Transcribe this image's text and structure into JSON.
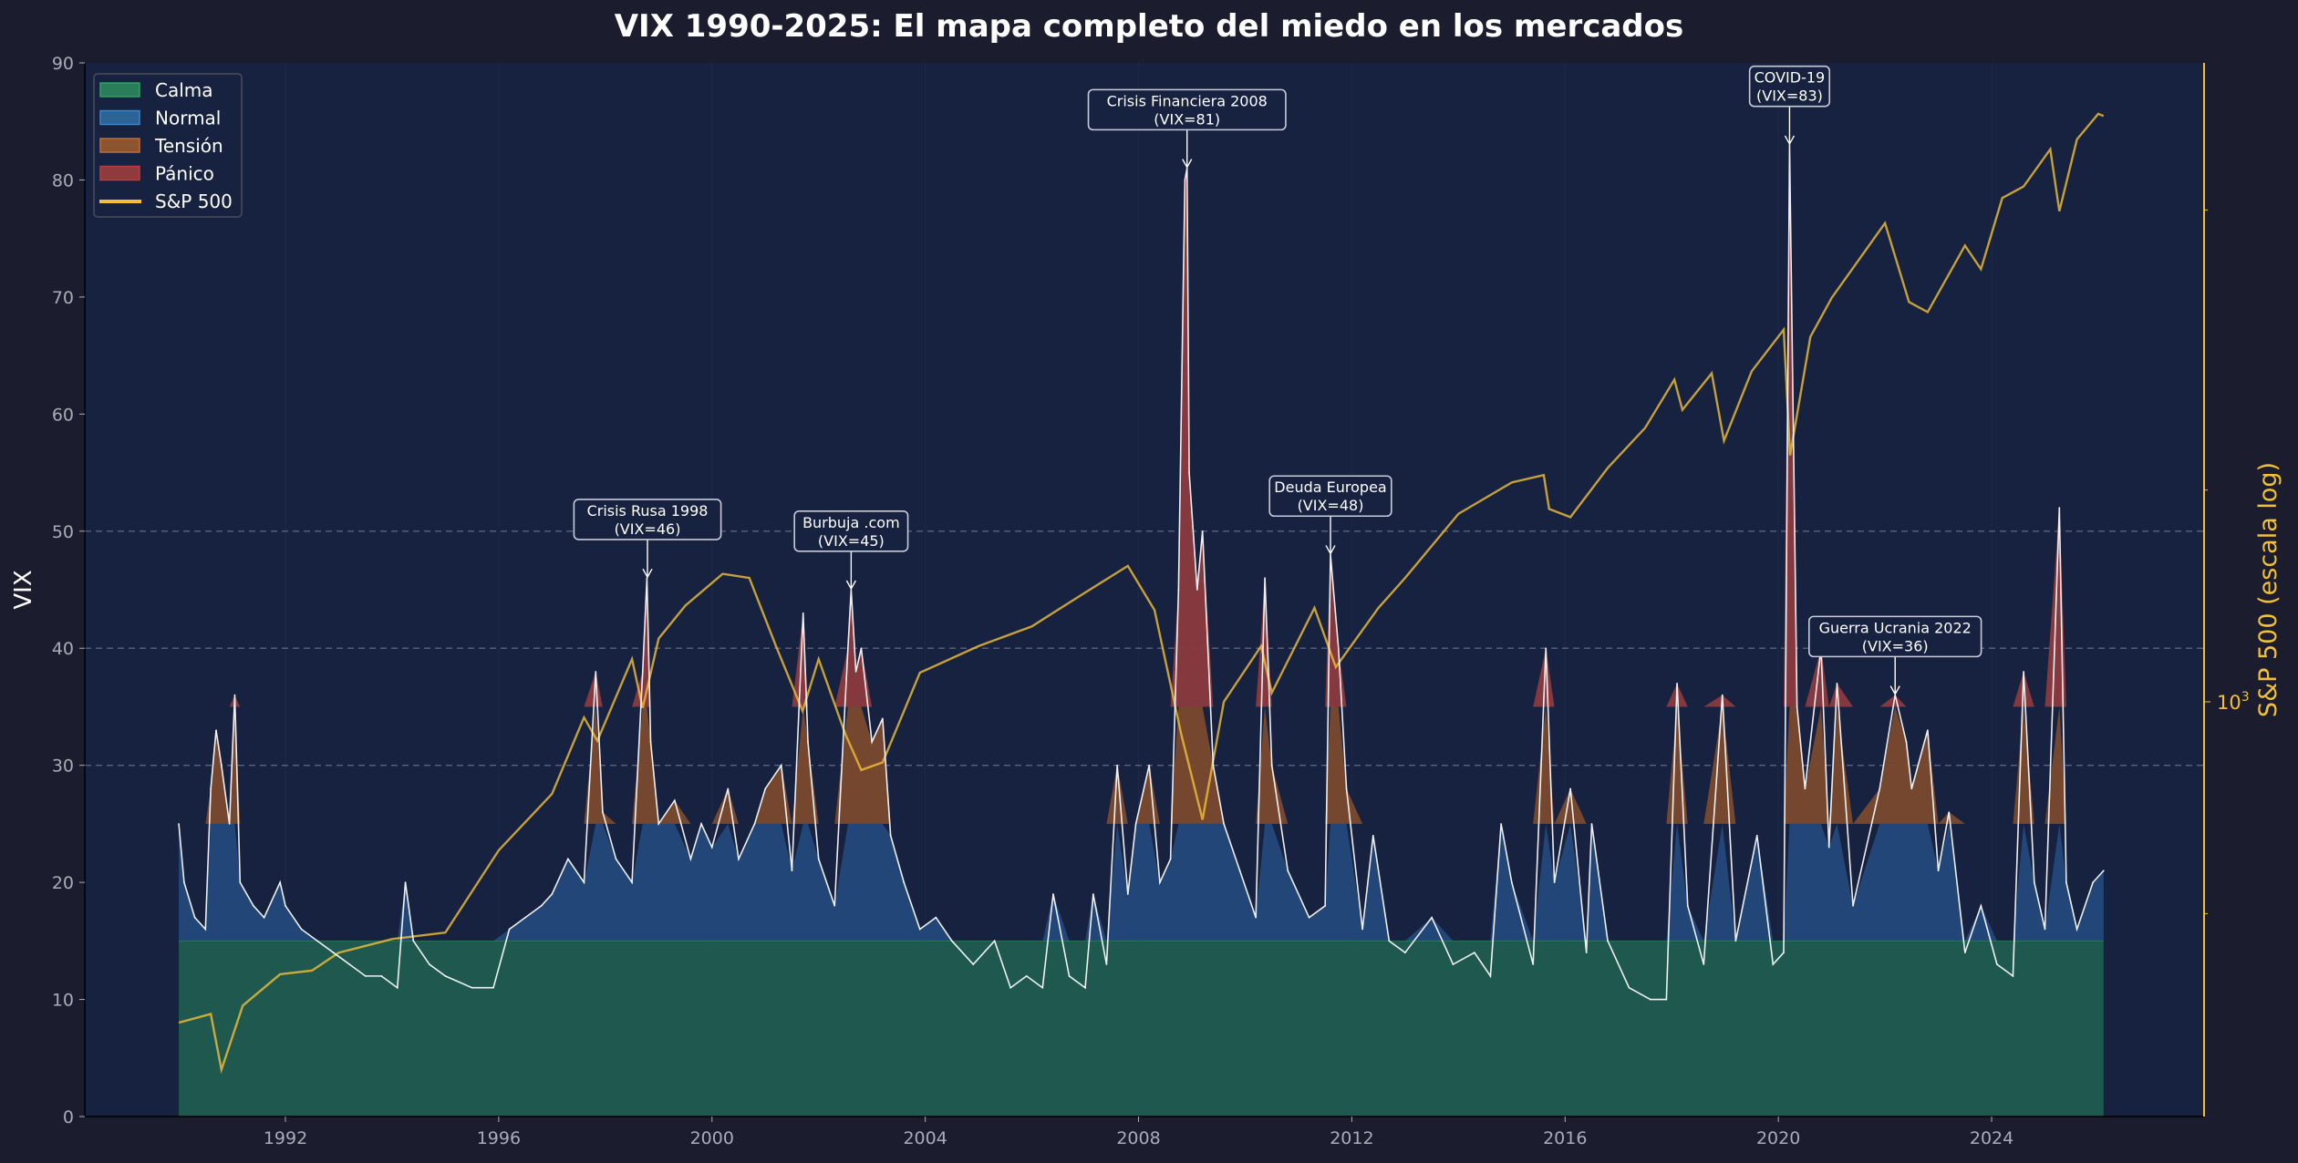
{
  "chart_data": {
    "type": "area",
    "title": "VIX 1990-2025: El mapa completo del miedo en los mercados",
    "ylabel": "VIX",
    "y2label": "S&P 500 (escala log)",
    "xlim": [
      1988.4,
      2028.0
    ],
    "ylim": [
      0,
      90
    ],
    "y2_scale": "log",
    "y2_ticks": [
      {
        "value": 1000,
        "base": "10",
        "exp": "3"
      }
    ],
    "xticks": [
      1992,
      1996,
      2000,
      2004,
      2008,
      2012,
      2016,
      2020,
      2024
    ],
    "yticks": [
      0,
      10,
      20,
      30,
      40,
      50,
      60,
      70,
      80,
      90
    ],
    "grid": {
      "dashed_y": [
        30,
        40,
        50
      ]
    },
    "legend": {
      "placement": "top-left",
      "entries": [
        {
          "label": "Calma",
          "kind": "patch",
          "fill": "#2a7d5a",
          "edge": "#2ea35f"
        },
        {
          "label": "Normal",
          "kind": "patch",
          "fill": "#2a6496",
          "edge": "#3a86c8"
        },
        {
          "label": "Tensión",
          "kind": "patch",
          "fill": "#8a5530",
          "edge": "#c86a2a"
        },
        {
          "label": "Pánico",
          "kind": "patch",
          "fill": "#8e3a3f",
          "edge": "#c0393b"
        },
        {
          "label": "S&P 500",
          "kind": "line",
          "color": "#f2c037"
        }
      ]
    },
    "regimes": [
      {
        "name": "Calma",
        "from": 0,
        "to": 15,
        "color": "#1f5c50"
      },
      {
        "name": "Normal",
        "from": 15,
        "to": 25,
        "color": "#23497a"
      },
      {
        "name": "Tensión",
        "from": 25,
        "to": 35,
        "color": "#7a4a2e"
      },
      {
        "name": "Pánico",
        "from": 35,
        "to": 90,
        "color": "#8b3a3e"
      }
    ],
    "series": [
      {
        "name": "VIX",
        "color": "#ffffff",
        "x": [
          1990.0,
          1990.1,
          1990.3,
          1990.5,
          1990.6,
          1990.7,
          1990.8,
          1990.95,
          1991.05,
          1991.15,
          1991.4,
          1991.6,
          1991.9,
          1992.0,
          1992.3,
          1992.6,
          1992.9,
          1993.2,
          1993.5,
          1993.8,
          1994.1,
          1994.25,
          1994.4,
          1994.7,
          1995.0,
          1995.5,
          1995.9,
          1996.2,
          1996.5,
          1996.8,
          1997.0,
          1997.3,
          1997.6,
          1997.82,
          1997.95,
          1998.2,
          1998.5,
          1998.7,
          1998.78,
          1998.85,
          1999.0,
          1999.3,
          1999.6,
          1999.8,
          2000.0,
          2000.3,
          2000.5,
          2000.8,
          2001.0,
          2001.3,
          2001.5,
          2001.71,
          2001.8,
          2002.0,
          2002.3,
          2002.55,
          2002.61,
          2002.7,
          2002.8,
          2003.0,
          2003.2,
          2003.35,
          2003.6,
          2003.9,
          2004.2,
          2004.5,
          2004.9,
          2005.3,
          2005.6,
          2005.9,
          2006.2,
          2006.4,
          2006.7,
          2007.0,
          2007.15,
          2007.4,
          2007.6,
          2007.8,
          2007.95,
          2008.2,
          2008.4,
          2008.6,
          2008.75,
          2008.87,
          2008.91,
          2008.95,
          2009.1,
          2009.2,
          2009.4,
          2009.6,
          2009.9,
          2010.2,
          2010.37,
          2010.5,
          2010.8,
          2011.2,
          2011.5,
          2011.6,
          2011.75,
          2011.9,
          2012.2,
          2012.4,
          2012.7,
          2013.0,
          2013.5,
          2013.9,
          2014.3,
          2014.6,
          2014.8,
          2015.0,
          2015.4,
          2015.64,
          2015.8,
          2016.1,
          2016.4,
          2016.5,
          2016.8,
          2017.2,
          2017.6,
          2017.9,
          2018.1,
          2018.3,
          2018.6,
          2018.95,
          2019.2,
          2019.6,
          2019.9,
          2020.1,
          2020.21,
          2020.35,
          2020.5,
          2020.8,
          2020.95,
          2021.1,
          2021.4,
          2021.9,
          2022.19,
          2022.4,
          2022.5,
          2022.8,
          2023.0,
          2023.2,
          2023.5,
          2023.8,
          2024.1,
          2024.4,
          2024.6,
          2024.8,
          2025.0,
          2025.27,
          2025.4,
          2025.6,
          2025.9,
          2026.1
        ],
        "values": [
          25,
          20,
          17,
          16,
          28,
          33,
          30,
          25,
          36,
          20,
          18,
          17,
          20,
          18,
          16,
          15,
          14,
          13,
          12,
          12,
          11,
          20,
          15,
          13,
          12,
          11,
          11,
          16,
          17,
          18,
          19,
          22,
          20,
          38,
          26,
          22,
          20,
          38,
          46,
          32,
          25,
          27,
          22,
          25,
          23,
          28,
          22,
          25,
          28,
          30,
          21,
          43,
          32,
          22,
          18,
          40,
          45,
          38,
          40,
          32,
          34,
          24,
          20,
          16,
          17,
          15,
          13,
          15,
          11,
          12,
          11,
          19,
          12,
          11,
          19,
          13,
          30,
          19,
          25,
          30,
          20,
          22,
          45,
          80,
          81,
          55,
          45,
          50,
          30,
          25,
          21,
          17,
          46,
          30,
          21,
          17,
          18,
          48,
          40,
          28,
          16,
          24,
          15,
          14,
          17,
          13,
          14,
          12,
          25,
          20,
          13,
          40,
          20,
          28,
          14,
          25,
          15,
          11,
          10,
          10,
          37,
          18,
          13,
          36,
          15,
          24,
          13,
          14,
          83,
          35,
          28,
          40,
          23,
          37,
          18,
          28,
          36,
          32,
          28,
          33,
          21,
          26,
          14,
          18,
          13,
          12,
          38,
          20,
          16,
          52,
          20,
          16,
          20,
          21
        ]
      },
      {
        "name": "S&P 500",
        "color": "#f2c037",
        "axis": "right",
        "x": [
          1990.0,
          1990.6,
          1990.8,
          1991.2,
          1991.9,
          1992.5,
          1993.0,
          1994.0,
          1995.0,
          1996.0,
          1997.0,
          1997.6,
          1997.85,
          1998.5,
          1998.7,
          1999.0,
          1999.5,
          2000.2,
          2000.7,
          2001.2,
          2001.7,
          2002.0,
          2002.5,
          2002.8,
          2003.2,
          2003.9,
          2005.0,
          2006.0,
          2007.0,
          2007.8,
          2008.3,
          2008.8,
          2009.2,
          2009.6,
          2010.3,
          2010.5,
          2011.3,
          2011.7,
          2012.5,
          2013.0,
          2014.0,
          2015.0,
          2015.6,
          2015.7,
          2016.1,
          2016.8,
          2017.5,
          2018.05,
          2018.2,
          2018.75,
          2018.98,
          2019.5,
          2020.1,
          2020.22,
          2020.6,
          2021.0,
          2022.0,
          2022.45,
          2022.8,
          2023.5,
          2023.8,
          2024.2,
          2024.6,
          2025.1,
          2025.27,
          2025.6,
          2026.0,
          2026.1
        ],
        "values": [
          350,
          360,
          300,
          370,
          410,
          415,
          440,
          460,
          470,
          615,
          740,
          950,
          880,
          1150,
          980,
          1230,
          1370,
          1520,
          1500,
          1200,
          970,
          1150,
          900,
          800,
          820,
          1100,
          1200,
          1280,
          1430,
          1560,
          1350,
          900,
          680,
          1000,
          1200,
          1030,
          1360,
          1120,
          1360,
          1500,
          1850,
          2050,
          2100,
          1880,
          1830,
          2150,
          2450,
          2870,
          2600,
          2930,
          2350,
          2950,
          3380,
          2240,
          3300,
          3750,
          4790,
          3700,
          3580,
          4450,
          4120,
          5200,
          5400,
          6100,
          4980,
          6300,
          6850,
          6800
        ]
      }
    ],
    "annotations": [
      {
        "line1": "Crisis Rusa 1998",
        "line2": "(VIX=46)",
        "year": 1998.79,
        "vix": 46
      },
      {
        "line1": "Burbuja .com",
        "line2": "(VIX=45)",
        "year": 2002.61,
        "vix": 45
      },
      {
        "line1": "Crisis Financiera 2008",
        "line2": "(VIX=81)",
        "year": 2008.91,
        "vix": 81
      },
      {
        "line1": "Deuda Europea",
        "line2": "(VIX=48)",
        "year": 2011.6,
        "vix": 48
      },
      {
        "line1": "COVID-19",
        "line2": "(VIX=83)",
        "year": 2020.21,
        "vix": 83
      },
      {
        "line1": "Guerra Ucrania 2022",
        "line2": "(VIX=36)",
        "year": 2022.19,
        "vix": 36
      }
    ]
  }
}
